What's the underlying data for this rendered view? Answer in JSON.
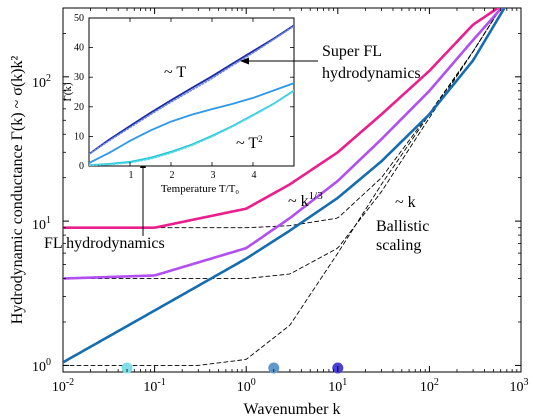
{
  "chart_data": [
    {
      "type": "line",
      "xlabel": "Wavenumber k",
      "ylabel": "Hydrodynamic conductance Γ(k) ~ σ(k)k²",
      "xscale": "log",
      "yscale": "log",
      "xlim": [
        0.01,
        1000
      ],
      "ylim": [
        0.9,
        300
      ],
      "grid": false,
      "x_ticks": [
        {
          "base": "10",
          "exp": "-2"
        },
        {
          "base": "10",
          "exp": "-1"
        },
        {
          "base": "10",
          "exp": "0"
        },
        {
          "base": "10",
          "exp": "1"
        },
        {
          "base": "10",
          "exp": "2"
        },
        {
          "base": "10",
          "exp": "3"
        }
      ],
      "y_ticks": [
        {
          "base": "10",
          "exp": "0"
        },
        {
          "base": "10",
          "exp": "1"
        },
        {
          "base": "10",
          "exp": "2"
        }
      ],
      "series": [
        {
          "color": "#ea1e8c",
          "style": "solid",
          "gamma0": 9,
          "sat": 0.18,
          "x": [
            0.01,
            0.1,
            1,
            3,
            10,
            30,
            100,
            300,
            700
          ],
          "y": [
            9,
            9,
            12.2,
            18,
            30,
            55,
            110,
            230,
            330
          ]
        },
        {
          "color": "#b14ff0",
          "style": "solid",
          "gamma0": 4,
          "sat": 0.12,
          "x": [
            0.01,
            0.1,
            1,
            3,
            10,
            30,
            100,
            300,
            700
          ],
          "y": [
            4,
            4.2,
            6.5,
            10.5,
            19,
            37,
            80,
            180,
            330
          ]
        },
        {
          "color": "#136db0",
          "style": "solid",
          "gamma0": 1,
          "sat": 0.012,
          "x": [
            0.01,
            0.1,
            1,
            3,
            10,
            30,
            100,
            300,
            700
          ],
          "y": [
            1.05,
            2.4,
            5.5,
            8.6,
            14.5,
            26,
            55,
            130,
            320
          ]
        },
        {
          "color": "#000000",
          "style": "dashed",
          "gamma0": 9,
          "x": [
            0.01,
            1,
            3,
            10,
            30,
            100,
            300,
            800
          ],
          "y": [
            9,
            9,
            9.3,
            10.5,
            20,
            56,
            150,
            400
          ]
        },
        {
          "color": "#000000",
          "style": "dashed",
          "gamma0": 4,
          "x": [
            0.01,
            1,
            3,
            10,
            30,
            100,
            300,
            800
          ],
          "y": [
            4,
            4,
            4.3,
            6.5,
            16,
            52,
            150,
            400
          ]
        },
        {
          "color": "#000000",
          "style": "dashed",
          "gamma0": 1,
          "x": [
            0.01,
            0.3,
            1,
            3,
            10,
            30,
            100,
            300,
            800
          ],
          "y": [
            1,
            1,
            1.1,
            1.9,
            6,
            18,
            55,
            150,
            400
          ]
        }
      ],
      "markers": [
        {
          "x": 0.05,
          "y": 0.96,
          "color": "#7fdde8"
        },
        {
          "x": 2,
          "y": 0.96,
          "color": "#5e98cc"
        },
        {
          "x": 10,
          "y": 0.96,
          "color": "#4a3fd6"
        }
      ],
      "annotations": [
        {
          "text": "FL hydrodynamics"
        },
        {
          "text": "~ k",
          "sup": "1/3"
        },
        {
          "text": "~ k"
        },
        {
          "text": "Ballistic"
        },
        {
          "text": "scaling"
        },
        {
          "text": "Super FL"
        },
        {
          "text": "hydrodynamics"
        }
      ]
    },
    {
      "type": "line",
      "xlabel": "Temperature T/T₀",
      "ylabel": "Γ(k)",
      "xlim": [
        0,
        5
      ],
      "ylim": [
        0,
        50
      ],
      "x_ticks": [
        "1",
        "2",
        "3",
        "4"
      ],
      "y_ticks": [
        "0",
        "10",
        "20",
        "30",
        "40",
        "50"
      ],
      "series": [
        {
          "color": "#1a2aa0",
          "style": "solid",
          "x": [
            0,
            0.5,
            1,
            1.5,
            2,
            2.5,
            3,
            3.5,
            4,
            4.5,
            5
          ],
          "y": [
            4,
            9,
            13.5,
            18,
            22.2,
            26.3,
            30.3,
            34.6,
            38.8,
            43,
            47.5
          ]
        },
        {
          "color": "#6d86e8",
          "style": "dotted",
          "x": [
            0,
            0.5,
            1,
            1.5,
            2,
            2.5,
            3,
            3.5,
            4,
            4.5,
            5
          ],
          "y": [
            4,
            8.6,
            13,
            17.4,
            21.6,
            25.6,
            29.6,
            34,
            38.2,
            42.7,
            47.3
          ]
        },
        {
          "color": "#2c98ec",
          "style": "solid",
          "x": [
            0,
            0.5,
            1,
            1.5,
            2,
            2.5,
            3,
            3.5,
            4,
            4.5,
            5
          ],
          "y": [
            1,
            4.5,
            8.5,
            12,
            15,
            17.3,
            19.2,
            21,
            23,
            25.5,
            28
          ]
        },
        {
          "color": "#21c7d9",
          "style": "solid",
          "x": [
            0,
            0.5,
            1,
            1.5,
            2,
            2.5,
            3,
            3.5,
            4,
            4.5,
            5
          ],
          "y": [
            0.3,
            0.7,
            1.4,
            2.8,
            4.8,
            7.2,
            10.2,
            13.5,
            17.2,
            21,
            25.5
          ]
        },
        {
          "color": "#5ad8e3",
          "style": "dotted",
          "x": [
            0,
            0.5,
            1,
            1.5,
            2,
            2.5,
            3,
            3.5,
            4,
            4.5,
            5
          ],
          "y": [
            0.2,
            0.5,
            1.1,
            2.4,
            4.4,
            6.9,
            9.9,
            13.3,
            17.0,
            20.9,
            25.3
          ]
        }
      ],
      "annotations": [
        {
          "text": "~ T"
        },
        {
          "text": "~ T",
          "sup": "2"
        }
      ]
    }
  ]
}
